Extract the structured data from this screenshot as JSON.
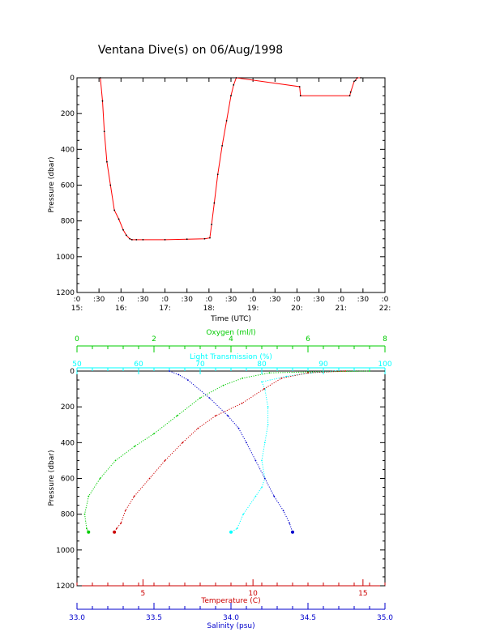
{
  "title": "Ventana Dive(s) on 06/Aug/1998",
  "chart_data": [
    {
      "type": "line",
      "name_text": "top-panel",
      "xlabel": "Time (UTC)",
      "ylabel": "Pressure (dbar)",
      "xlim": [
        15.0,
        22.0
      ],
      "ylim": [
        0,
        1200
      ],
      "y_reversed": true,
      "x_ticks": [
        {
          "v": 15.0,
          "top": ":0",
          "bottom": "15:"
        },
        {
          "v": 15.5,
          "top": ":30",
          "bottom": ""
        },
        {
          "v": 16.0,
          "top": ":0",
          "bottom": "16:"
        },
        {
          "v": 16.5,
          "top": ":30",
          "bottom": ""
        },
        {
          "v": 17.0,
          "top": ":0",
          "bottom": "17:"
        },
        {
          "v": 17.5,
          "top": ":30",
          "bottom": ""
        },
        {
          "v": 18.0,
          "top": ":0",
          "bottom": "18:"
        },
        {
          "v": 18.5,
          "top": ":30",
          "bottom": ""
        },
        {
          "v": 19.0,
          "top": ":0",
          "bottom": "19:"
        },
        {
          "v": 19.5,
          "top": ":30",
          "bottom": ""
        },
        {
          "v": 20.0,
          "top": ":0",
          "bottom": "20:"
        },
        {
          "v": 20.5,
          "top": ":30",
          "bottom": ""
        },
        {
          "v": 21.0,
          "top": ":0",
          "bottom": "21:"
        },
        {
          "v": 21.5,
          "top": ":30",
          "bottom": ""
        },
        {
          "v": 22.0,
          "top": ":0",
          "bottom": "22:"
        }
      ],
      "y_ticks": [
        "0",
        "200",
        "400",
        "600",
        "800",
        "1000",
        "1200"
      ],
      "series": [
        {
          "color": "#ff0000",
          "x": [
            15.53,
            15.58,
            15.62,
            15.68,
            15.76,
            15.85,
            15.95,
            16.05,
            16.12,
            16.2,
            16.25,
            16.35,
            16.5,
            17.0,
            17.5,
            17.9,
            18.02,
            18.06,
            18.12,
            18.2,
            18.3,
            18.4,
            18.5,
            18.56,
            18.62,
            20.06,
            20.08,
            21.2,
            21.22,
            21.3,
            21.33,
            21.37,
            21.45
          ],
          "y": [
            0,
            130,
            300,
            470,
            600,
            740,
            790,
            850,
            880,
            900,
            905,
            905,
            905,
            905,
            902,
            900,
            895,
            820,
            700,
            540,
            380,
            240,
            100,
            40,
            0,
            50,
            100,
            100,
            80,
            20,
            15,
            0,
            0
          ]
        }
      ]
    },
    {
      "type": "scatter",
      "name_text": "bottom-panel",
      "ylabel": "Pressure (dbar)",
      "ylim": [
        0,
        1200
      ],
      "y_reversed": true,
      "y_ticks": [
        "0",
        "200",
        "400",
        "600",
        "800",
        "1000",
        "1200"
      ],
      "axes": {
        "oxygen": {
          "label": "Oxygen (ml/l)",
          "color": "#00cc00",
          "range": [
            0,
            8
          ],
          "ticks": [
            "0",
            "2",
            "4",
            "6",
            "8"
          ]
        },
        "light_transmission": {
          "label": "Light Transmission (%)",
          "color": "#00ffff",
          "range": [
            50,
            100
          ],
          "ticks": [
            "50",
            "60",
            "70",
            "80",
            "90",
            "100"
          ]
        },
        "temperature": {
          "label": "Temperature (C)",
          "color": "#cc0000",
          "range": [
            2,
            16
          ],
          "ticks": [
            "5",
            "10",
            "15"
          ]
        },
        "salinity": {
          "label": "Salinity (psu)",
          "color": "#0000cc",
          "range": [
            33.0,
            35.0
          ],
          "ticks": [
            "33.0",
            "33.5",
            "34.0",
            "34.5",
            "35.0"
          ]
        }
      },
      "series": [
        {
          "name": "Oxygen (ml/l)",
          "axis": "oxygen",
          "color": "#00cc00",
          "x": [
            7.6,
            6.0,
            5.0,
            4.3,
            3.8,
            3.2,
            2.6,
            2.0,
            1.5,
            1.0,
            0.6,
            0.3,
            0.2,
            0.25,
            0.3
          ],
          "y": [
            0,
            5,
            10,
            40,
            80,
            150,
            250,
            350,
            420,
            500,
            600,
            700,
            800,
            880,
            900
          ]
        },
        {
          "name": "Light Transmission (%)",
          "axis": "light_transmission",
          "color": "#00ffff",
          "x": [
            92,
            88,
            84,
            80,
            80.5,
            81,
            81,
            80.5,
            80,
            80.5,
            80,
            79,
            77,
            76,
            75
          ],
          "y": [
            0,
            10,
            30,
            60,
            100,
            200,
            300,
            400,
            500,
            600,
            650,
            700,
            800,
            880,
            900
          ]
        },
        {
          "name": "Temperature (C)",
          "axis": "temperature",
          "color": "#cc0000",
          "x": [
            14.2,
            12.5,
            11.3,
            10.5,
            9.5,
            8.3,
            7.5,
            6.8,
            6.0,
            5.3,
            4.6,
            4.2,
            4.0,
            3.8,
            3.7
          ],
          "y": [
            0,
            10,
            40,
            100,
            180,
            250,
            320,
            400,
            500,
            600,
            700,
            780,
            850,
            880,
            900
          ]
        },
        {
          "name": "Salinity (psu)",
          "axis": "salinity",
          "color": "#0000cc",
          "x": [
            33.6,
            33.66,
            33.72,
            33.86,
            33.98,
            34.05,
            34.1,
            34.16,
            34.22,
            34.28,
            34.34,
            34.38,
            34.4
          ],
          "y": [
            0,
            20,
            50,
            150,
            250,
            320,
            400,
            500,
            600,
            700,
            780,
            850,
            900
          ]
        }
      ]
    }
  ]
}
